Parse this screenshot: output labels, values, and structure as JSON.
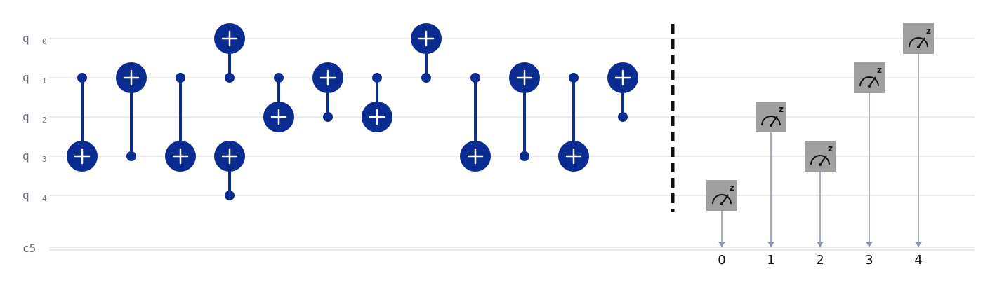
{
  "qubits": [
    {
      "label": "q",
      "index": "0"
    },
    {
      "label": "q",
      "index": "1"
    },
    {
      "label": "q",
      "index": "2"
    },
    {
      "label": "q",
      "index": "3"
    },
    {
      "label": "q",
      "index": "4"
    }
  ],
  "classical_register": {
    "label": "c5"
  },
  "gates": [
    {
      "type": "cx",
      "control": 1,
      "target": 3
    },
    {
      "type": "cx",
      "control": 3,
      "target": 1
    },
    {
      "type": "cx",
      "control": 1,
      "target": 3
    },
    {
      "type": "cx",
      "control": 1,
      "target": 0
    },
    {
      "type": "cx",
      "control": 4,
      "target": 3
    },
    {
      "type": "cx",
      "control": 1,
      "target": 2
    },
    {
      "type": "cx",
      "control": 2,
      "target": 1
    },
    {
      "type": "cx",
      "control": 1,
      "target": 2
    },
    {
      "type": "cx",
      "control": 1,
      "target": 0
    },
    {
      "type": "cx",
      "control": 1,
      "target": 3
    },
    {
      "type": "cx",
      "control": 3,
      "target": 1
    },
    {
      "type": "cx",
      "control": 1,
      "target": 3
    },
    {
      "type": "cx",
      "control": 2,
      "target": 1
    }
  ],
  "barrier": true,
  "measurements": [
    {
      "qubit": 4,
      "bit": "0",
      "basis": "z"
    },
    {
      "qubit": 2,
      "bit": "1",
      "basis": "z"
    },
    {
      "qubit": 3,
      "bit": "2",
      "basis": "z"
    },
    {
      "qubit": 1,
      "bit": "3",
      "basis": "z"
    },
    {
      "qubit": 0,
      "bit": "4",
      "basis": "z"
    }
  ],
  "colors": {
    "gate": "#0a2b8f",
    "measure_box": "#a0a0a0",
    "wire": "#d4d4d4"
  }
}
